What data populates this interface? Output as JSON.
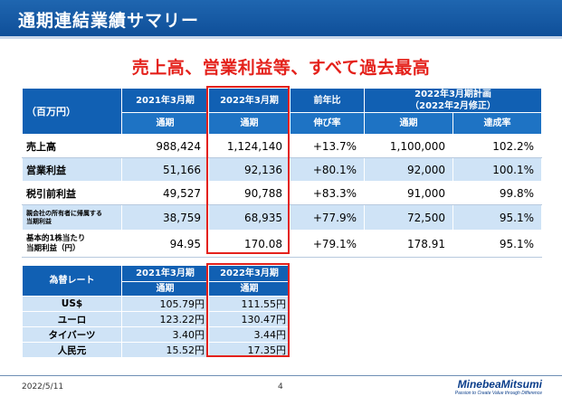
{
  "header": {
    "title": "通期連結業績サマリー"
  },
  "subtitle": "売上高、営業利益等、すべて過去最高",
  "main_table": {
    "unit_label": "（百万円）",
    "col_2021": "2021年3月期",
    "col_2022": "2022年3月期",
    "col_yoy": "前年比",
    "col_plan": "2022年3月期計画\n（2022年2月修正）",
    "sub_full": "通期",
    "sub_growth": "伸び率",
    "sub_achieve": "達成率",
    "rows": [
      {
        "label": "売上高",
        "fy2021": "988,424",
        "fy2022": "1,124,140",
        "yoy": "+13.7%",
        "plan": "1,100,000",
        "rate": "102.2%"
      },
      {
        "label": "営業利益",
        "fy2021": "51,166",
        "fy2022": "92,136",
        "yoy": "+80.1%",
        "plan": "92,000",
        "rate": "100.1%"
      },
      {
        "label": "税引前利益",
        "fy2021": "49,527",
        "fy2022": "90,788",
        "yoy": "+83.3%",
        "plan": "91,000",
        "rate": "99.8%"
      },
      {
        "label": "親会社の所有者に帰属する\n当期利益",
        "fy2021": "38,759",
        "fy2022": "68,935",
        "yoy": "+77.9%",
        "plan": "72,500",
        "rate": "95.1%"
      },
      {
        "label": "基本的1株当たり\n当期利益（円）",
        "fy2021": "94.95",
        "fy2022": "170.08",
        "yoy": "+79.1%",
        "plan": "178.91",
        "rate": "95.1%"
      }
    ]
  },
  "fx_table": {
    "label": "為替レート",
    "col_2021": "2021年3月期",
    "col_2022": "2022年3月期",
    "sub_full": "通期",
    "rows": [
      {
        "currency": "US$",
        "fy2021": "105.79円",
        "fy2022": "111.55円"
      },
      {
        "currency": "ユーロ",
        "fy2021": "123.22円",
        "fy2022": "130.47円"
      },
      {
        "currency": "タイバーツ",
        "fy2021": "3.40円",
        "fy2022": "3.44円"
      },
      {
        "currency": "人民元",
        "fy2021": "15.52円",
        "fy2022": "17.35円"
      }
    ]
  },
  "footer": {
    "date": "2022/5/11",
    "page": "4",
    "logo": "MinebeaMitsumi",
    "tagline": "Passion to Create Value through Difference"
  },
  "colors": {
    "brand_blue": "#1160b3",
    "highlight_red": "#e4211b",
    "row_blue": "#cfe3f6"
  }
}
